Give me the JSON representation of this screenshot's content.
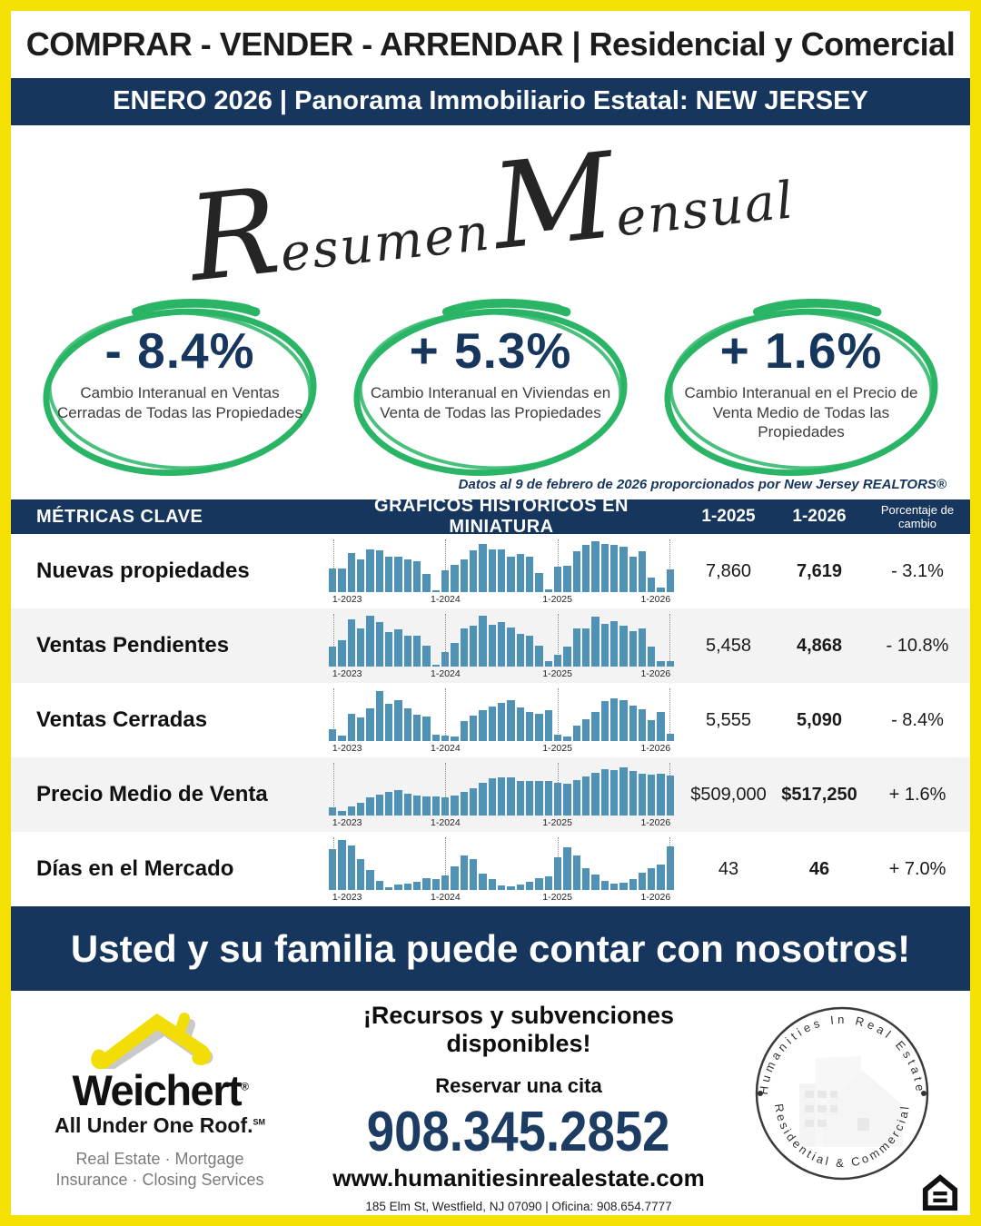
{
  "colors": {
    "navy": "#16365d",
    "yellow": "#f5e003",
    "green": "#2ab566",
    "bar_blue": "#4f92b6"
  },
  "top_banner": "COMPRAR - VENDER - ARRENDAR | Residencial y Comercial",
  "sub_banner": "ENERO 2026 | Panorama Immobiliario Estatal: NEW JERSEY",
  "script_title": {
    "cap1": "R",
    "rest1": "esumen",
    "cap2": "M",
    "rest2": "ensual"
  },
  "stats": [
    {
      "value": "- 8.4%",
      "caption": "Cambio Interanual en Ventas Cerradas de Todas las Propiedades"
    },
    {
      "value": "+ 5.3%",
      "caption": "Cambio Interanual en Viviendas en Venta de Todas las Propiedades"
    },
    {
      "value": "+ 1.6%",
      "caption": "Cambio Interanual en el Precio de Venta Medio de Todas las Propiedades"
    }
  ],
  "source_note": "Datos al 9 de febrero de 2026 proporcionados por New Jersey REALTORS®",
  "table": {
    "headers": {
      "metrics": "MÉTRICAS CLAVE",
      "charts": "GRÁFICOS HISTÓRICOS EN MINIATURA",
      "y2025": "1-2025",
      "y2026": "1-2026",
      "pct": "Porcentaje de cambio"
    },
    "axis_labels": [
      "1-2023",
      "1-2024",
      "1-2025",
      "1-2026"
    ],
    "rows": [
      {
        "label": "Nuevas propiedades",
        "v2025": "7,860",
        "v2026": "7,619",
        "pct": "- 3.1%"
      },
      {
        "label": "Ventas Pendientes",
        "v2025": "5,458",
        "v2026": "4,868",
        "pct": "- 10.8%"
      },
      {
        "label": "Ventas Cerradas",
        "v2025": "5,555",
        "v2026": "5,090",
        "pct": "- 8.4%"
      },
      {
        "label": "Precio Medio de Venta",
        "v2025": "$509,000",
        "v2026": "$517,250",
        "pct": "+ 1.6%"
      },
      {
        "label": "Días en el Mercado",
        "v2025": "43",
        "v2026": "46",
        "pct": "+ 7.0%"
      }
    ]
  },
  "chart_data": {
    "type": "bar",
    "note": "Monthly sparkline bars, Jan 2023 through Jan 2026 (37 bars per series); values are relative bar heights 0-100 read from pixels",
    "x_axis_ticks": [
      "1-2023",
      "1-2024",
      "1-2025",
      "1-2026"
    ],
    "gridline_bar_indices": [
      0,
      12,
      24,
      36
    ],
    "series": [
      {
        "name": "Nuevas propiedades",
        "values": [
          45,
          45,
          75,
          63,
          82,
          79,
          68,
          68,
          62,
          58,
          35,
          4,
          42,
          52,
          63,
          80,
          92,
          82,
          82,
          68,
          72,
          68,
          36,
          5,
          48,
          50,
          78,
          90,
          97,
          92,
          90,
          87,
          68,
          78,
          28,
          8,
          43
        ]
      },
      {
        "name": "Ventas Pendientes",
        "values": [
          38,
          50,
          90,
          72,
          97,
          85,
          65,
          70,
          58,
          58,
          40,
          3,
          28,
          45,
          72,
          78,
          97,
          80,
          85,
          75,
          62,
          58,
          40,
          10,
          22,
          38,
          72,
          72,
          95,
          82,
          87,
          78,
          68,
          72,
          38,
          10,
          10
        ]
      },
      {
        "name": "Ventas Cerradas",
        "values": [
          22,
          10,
          52,
          45,
          62,
          95,
          70,
          78,
          62,
          50,
          46,
          12,
          10,
          8,
          38,
          48,
          58,
          66,
          72,
          78,
          64,
          56,
          52,
          58,
          12,
          8,
          30,
          42,
          56,
          76,
          82,
          78,
          68,
          60,
          40,
          56,
          14
        ]
      },
      {
        "name": "Precio Medio de Venta",
        "values": [
          15,
          8,
          18,
          25,
          35,
          40,
          45,
          48,
          42,
          38,
          36,
          36,
          34,
          38,
          45,
          52,
          62,
          70,
          72,
          72,
          66,
          66,
          65,
          66,
          63,
          60,
          68,
          74,
          82,
          88,
          86,
          92,
          84,
          80,
          78,
          80,
          76
        ]
      },
      {
        "name": "Días en el Mercado",
        "values": [
          78,
          95,
          85,
          58,
          38,
          18,
          5,
          10,
          12,
          16,
          22,
          20,
          28,
          45,
          66,
          58,
          32,
          20,
          8,
          7,
          10,
          16,
          22,
          26,
          62,
          82,
          65,
          42,
          30,
          18,
          12,
          14,
          20,
          33,
          42,
          48,
          83
        ]
      }
    ]
  },
  "cta_banner": "Usted y su familia puede contar con nosotros!",
  "footer": {
    "weichert": {
      "name": "Weichert",
      "reg": "®",
      "tagline": "All Under One Roof.",
      "tagline_mark": "SM",
      "services1": "Real Estate · Mortgage",
      "services2": "Insurance · Closing Services"
    },
    "resources": "¡Recursos y subvenciones disponibles!",
    "cta": "Reservar una cita",
    "phone": "908.345.2852",
    "website": "www.humanitiesinrealestate.com",
    "address": "185 Elm St, Westfield, NJ 07090 | Oficina: 908.654.7777",
    "stamp": {
      "top": "Humanities  In  Real  Estate",
      "bottom": "Residential  &  Commercial"
    }
  }
}
